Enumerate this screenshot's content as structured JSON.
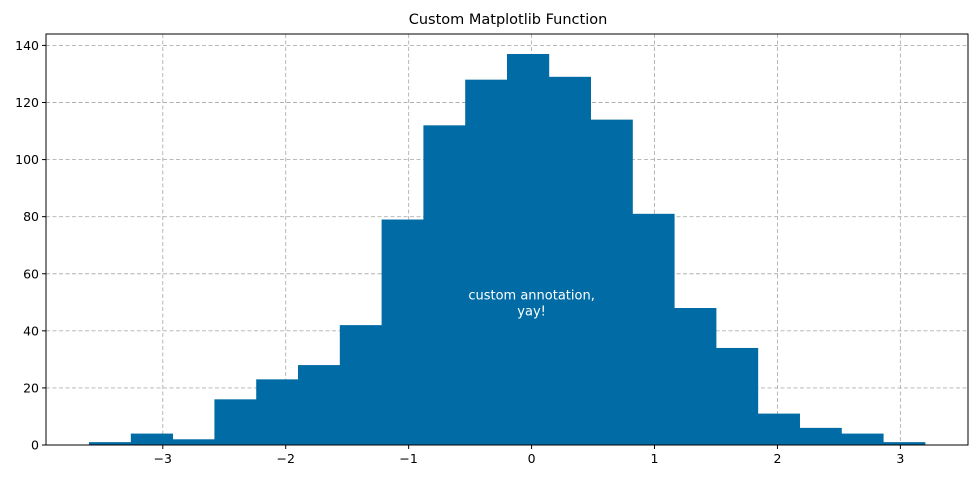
{
  "chart_data": {
    "type": "bar",
    "title": "Custom Matplotlib Function",
    "xlabel": "",
    "ylabel": "",
    "bin_edges": [
      -3.6,
      -3.26,
      -2.92,
      -2.58,
      -2.24,
      -1.9,
      -1.56,
      -1.22,
      -0.88,
      -0.54,
      -0.2,
      0.14,
      0.48,
      0.82,
      1.16,
      1.5,
      1.84,
      2.18,
      2.52,
      2.86,
      3.2
    ],
    "values": [
      1,
      4,
      2,
      16,
      23,
      28,
      42,
      79,
      112,
      128,
      137,
      129,
      114,
      81,
      48,
      34,
      11,
      6,
      4,
      1
    ],
    "xlim": [
      -3.95,
      3.55
    ],
    "ylim": [
      0,
      144
    ],
    "xticks": [
      -3,
      -2,
      -1,
      0,
      1,
      2,
      3
    ],
    "xtick_labels": [
      "−3",
      "−2",
      "−1",
      "0",
      "1",
      "2",
      "3"
    ],
    "yticks": [
      0,
      20,
      40,
      60,
      80,
      100,
      120,
      140
    ],
    "ytick_labels": [
      "0",
      "20",
      "40",
      "60",
      "80",
      "100",
      "120",
      "140"
    ],
    "grid": true,
    "bar_color": "#006ba4",
    "grid_color": "#b0b0b0",
    "annotation": {
      "lines": [
        "custom annotation,",
        "yay!"
      ],
      "x": 0,
      "y": 50,
      "color": "#ffffff"
    }
  }
}
